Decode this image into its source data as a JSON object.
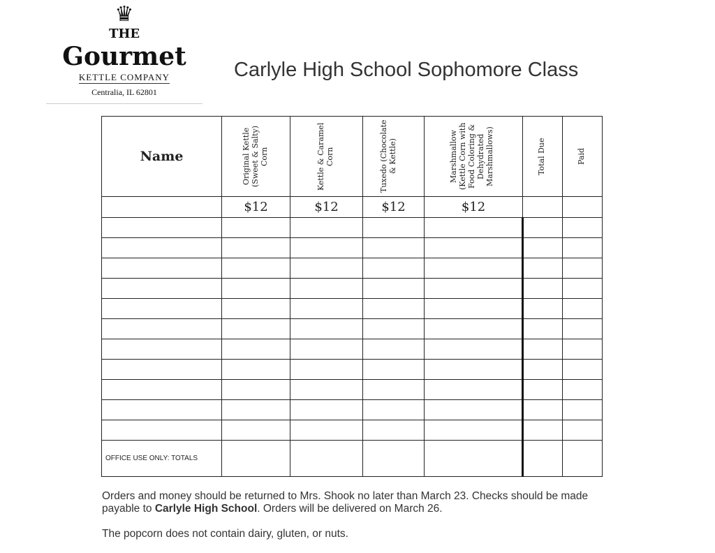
{
  "logo": {
    "the": "THE",
    "gourmet": "Gourmet",
    "company": "KETTLE COMPANY",
    "city": "Centralia, IL 62801"
  },
  "title": "Carlyle High School Sophomore Class",
  "table": {
    "headers": {
      "name": "Name",
      "cols": [
        "Original  Kettle (Sweet & Salty) Corn",
        "Kettle & Caramel Corn",
        "Tuxedo (Chocolate & Kettle)",
        "Marshmallow (Kettle Corn with Food Coloring & Dehydrated Marshmallows)",
        "Total Due",
        "Paid"
      ]
    },
    "prices": [
      "$12",
      "$12",
      "$12",
      "$12",
      "",
      ""
    ],
    "blank_rows": 11,
    "office_label": "OFFICE USE ONLY: TOTALS"
  },
  "notes": {
    "p1a": "Orders and money should be returned to Mrs. Shook no later than March 23. Checks should be made payable to ",
    "p1b": "Carlyle High School",
    "p1c": ". Orders will be delivered on March 26.",
    "p2": "The popcorn does not contain dairy, gluten, or nuts."
  }
}
